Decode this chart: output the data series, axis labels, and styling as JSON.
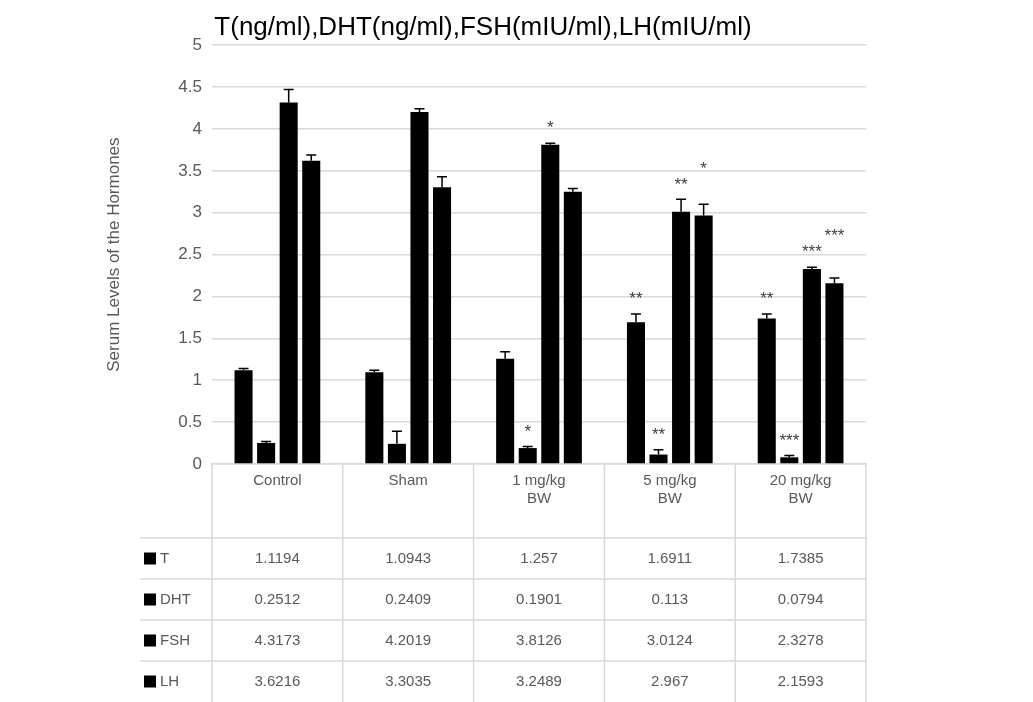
{
  "chart_data": {
    "type": "bar",
    "title": "T(ng/ml),DHT(ng/ml),FSH(mIU/ml),LH(mIU/ml)",
    "ylabel": "Serum Levels of the Hormones",
    "categories": [
      "Control",
      "Sham",
      "1 mg/kg BW",
      "5 mg/kg BW",
      "20 mg/kg BW"
    ],
    "series": [
      {
        "name": "T",
        "color": "#000000",
        "values": [
          1.1194,
          1.0943,
          1.257,
          1.6911,
          1.7385
        ],
        "errors": [
          [
            1.1194,
            1.14
          ],
          [
            1.0943,
            1.12
          ],
          [
            1.257,
            1.34
          ],
          [
            1.6911,
            1.79
          ],
          [
            1.7385,
            1.79
          ]
        ],
        "value_labels": [
          "1.1194",
          "1.0943",
          "1.257",
          "1.6911",
          "1.7385"
        ]
      },
      {
        "name": "DHT",
        "color": "#000000",
        "values": [
          0.2512,
          0.2409,
          0.1901,
          0.113,
          0.0794
        ],
        "errors": [
          [
            0.2512,
            0.27
          ],
          [
            0.2409,
            0.39
          ],
          [
            0.1901,
            0.21
          ],
          [
            0.113,
            0.17
          ],
          [
            0.0794,
            0.1
          ]
        ],
        "value_labels": [
          "0.2512",
          "0.2409",
          "0.1901",
          "0.113",
          "0.0794"
        ]
      },
      {
        "name": "FSH",
        "color": "#000000",
        "values": [
          4.3173,
          4.2019,
          3.8126,
          3.0124,
          2.3278
        ],
        "errors": [
          [
            4.3173,
            4.47
          ],
          [
            4.2019,
            4.24
          ],
          [
            3.8126,
            3.83
          ],
          [
            3.0124,
            3.16
          ],
          [
            2.3278,
            2.35
          ]
        ],
        "value_labels": [
          "4.3173",
          "4.2019",
          "3.8126",
          "3.0124",
          "2.3278"
        ]
      },
      {
        "name": "LH",
        "color": "#000000",
        "values": [
          3.6216,
          3.3035,
          3.2489,
          2.967,
          2.1593
        ],
        "errors": [
          [
            3.6216,
            3.69
          ],
          [
            3.3035,
            3.43
          ],
          [
            3.2489,
            3.29
          ],
          [
            2.967,
            3.1
          ],
          [
            2.1593,
            2.22
          ]
        ],
        "value_labels": [
          "3.6216",
          "3.3035",
          "3.2489",
          "2.967",
          "2.1593"
        ]
      }
    ],
    "annotations": [
      {
        "text": "*",
        "x": "1 mg/kg BW",
        "y": 0.1901
      },
      {
        "text": "*",
        "x": "1 mg/kg BW",
        "y": 3.8126
      },
      {
        "text": "**",
        "x": "5 mg/kg BW",
        "y": 1.6911
      },
      {
        "text": "**",
        "x": "5 mg/kg BW",
        "y": 0.113
      },
      {
        "text": "**",
        "x": "5 mg/kg BW",
        "y": 3.0124
      },
      {
        "text": "*",
        "x": "5 mg/kg BW",
        "y": 2.967
      },
      {
        "text": "**",
        "x": "20 mg/kg BW",
        "y": 1.7385
      },
      {
        "text": "***",
        "x": "20 mg/kg BW",
        "y": 0.0794
      },
      {
        "text": "***",
        "x": "20 mg/kg BW",
        "y": 2.3278
      },
      {
        "text": "***",
        "x": "20 mg/kg BW",
        "y": 2.1593
      }
    ],
    "ylim": [
      0,
      5
    ],
    "yticks": [
      0,
      0.5,
      1,
      1.5,
      2,
      2.5,
      3,
      3.5,
      4,
      4.5,
      5
    ],
    "grid": "y",
    "legend": "bottom"
  }
}
